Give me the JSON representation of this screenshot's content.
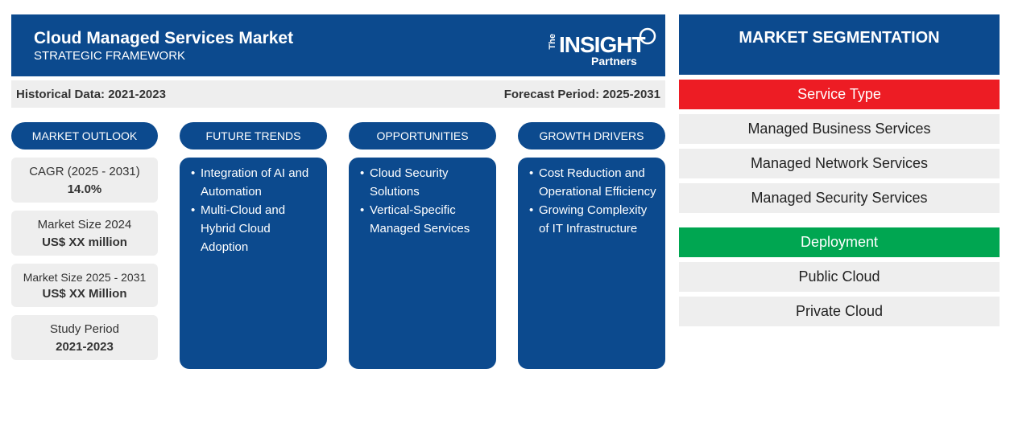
{
  "header": {
    "title": "Cloud Managed Services Market",
    "subtitle": "STRATEGIC FRAMEWORK",
    "logo": {
      "the": "The",
      "insight": "INSIGHT",
      "partners": "Partners"
    }
  },
  "period": {
    "historical": "Historical Data: 2021-2023",
    "forecast": "Forecast Period: 2025-2031"
  },
  "outlook": {
    "heading": "MARKET OUTLOOK",
    "stats": [
      {
        "label": "CAGR (2025 - 2031)",
        "value": "14.0%"
      },
      {
        "label": "Market Size 2024",
        "value": "US$ XX million"
      },
      {
        "label": "Market Size 2025 - 2031",
        "value": "US$ XX Million"
      },
      {
        "label": "Study Period",
        "value": "2021-2023"
      }
    ]
  },
  "columns": [
    {
      "heading": "FUTURE TRENDS",
      "items": [
        "Integration of AI and Automation",
        "Multi-Cloud and Hybrid Cloud Adoption"
      ]
    },
    {
      "heading": "OPPORTUNITIES",
      "items": [
        "Cloud Security Solutions",
        "Vertical-Specific Managed Services"
      ]
    },
    {
      "heading": "GROWTH DRIVERS",
      "items": [
        "Cost Reduction and Operational Efficiency",
        "Growing Complexity of IT Infrastructure"
      ]
    }
  ],
  "segmentation": {
    "title": "MARKET SEGMENTATION",
    "groups": [
      {
        "heading": "Service Type",
        "color": "#ed1c24",
        "items": [
          "Managed Business Services",
          "Managed Network Services",
          "Managed Security Services"
        ]
      },
      {
        "heading": "Deployment",
        "color": "#00a651",
        "items": [
          "Public Cloud",
          "Private Cloud"
        ]
      }
    ]
  }
}
